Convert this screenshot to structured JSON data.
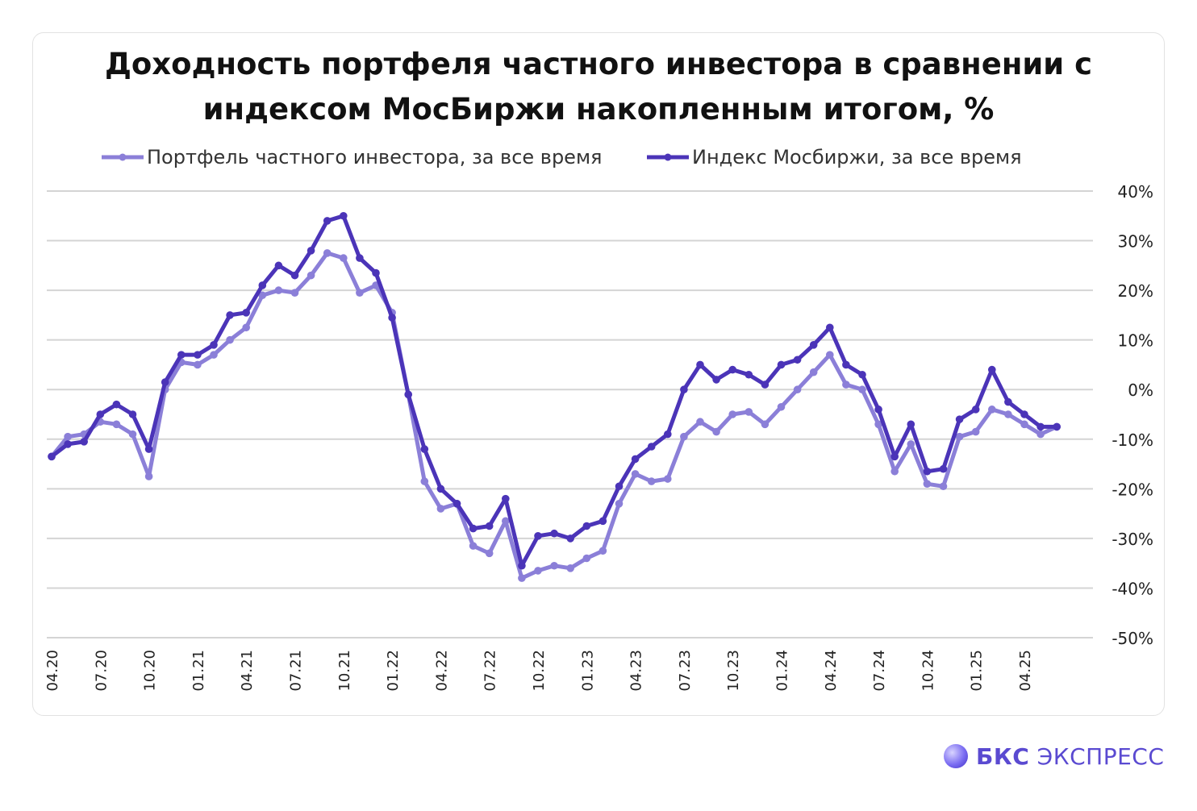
{
  "chart_data": {
    "type": "line",
    "title": "Доходность портфеля частного инвестора в сравнении с индексом МосБиржи накопленным итогом, %",
    "title_lines": [
      "Доходность портфеля частного инвестора в сравнении с",
      "индексом МосБиржи накопленным итогом, %"
    ],
    "legend_position": "top",
    "grid": true,
    "y_axis_side": "right",
    "ylim": [
      -50,
      40
    ],
    "y_ticks": [
      40,
      30,
      20,
      10,
      0,
      -10,
      -20,
      -30,
      -40,
      -50
    ],
    "y_tick_labels": [
      "40%",
      "30%",
      "20%",
      "10%",
      "0%",
      "-10%",
      "-20%",
      "-30%",
      "-40%",
      "-50%"
    ],
    "x_tick_labels": [
      "04.20",
      "07.20",
      "10.20",
      "01.21",
      "04.21",
      "07.21",
      "10.21",
      "01.22",
      "04.22",
      "07.22",
      "10.22",
      "01.23",
      "04.23",
      "07.23",
      "10.23",
      "01.24",
      "04.24",
      "07.24",
      "10.24",
      "01.25",
      "04.25"
    ],
    "x_tick_every": 3,
    "series": [
      {
        "name": "Портфель частного инвестора, за все время",
        "color": "#8b7fd8",
        "values": [
          -13.5,
          -9.5,
          -9,
          -6.5,
          -7,
          -9,
          -17.5,
          0,
          5.5,
          5,
          7,
          10,
          12.5,
          19,
          20,
          19.5,
          23,
          27.5,
          26.5,
          19.5,
          21,
          15.5,
          -1,
          -18.5,
          -24,
          -23,
          -31.5,
          -33,
          -26.5,
          -38,
          -36.5,
          -35.5,
          -36,
          -34,
          -32.5,
          -23,
          -17,
          -18.5,
          -18,
          -9.5,
          -6.5,
          -8.5,
          -5,
          -4.5,
          -7,
          -3.5,
          0,
          3.5,
          7,
          1,
          0,
          -7,
          -16.5,
          -11,
          -19,
          -19.5,
          -9.5,
          -8.5,
          -4,
          -5,
          -7,
          -9,
          -7.5
        ]
      },
      {
        "name": "Индекс Мосбиржи, за все время",
        "color": "#4b34b8",
        "values": [
          -13.5,
          -11,
          -10.5,
          -5,
          -3,
          -5,
          -12,
          1.5,
          7,
          7,
          9,
          15,
          15.5,
          21,
          25,
          23,
          28,
          34,
          35,
          26.5,
          23.5,
          14.5,
          -1,
          -12,
          -20,
          -23,
          -28,
          -27.5,
          -22,
          -35.5,
          -29.5,
          -29,
          -30,
          -27.5,
          -26.5,
          -19.5,
          -14,
          -11.5,
          -9,
          0,
          5,
          2,
          4,
          3,
          1,
          5,
          6,
          9,
          12.5,
          5,
          3,
          -4,
          -13.5,
          -7,
          -16.5,
          -16,
          -6,
          -4,
          4,
          -2.5,
          -5,
          -7.5,
          -7.5
        ]
      }
    ]
  },
  "brand": {
    "name_bold": "БКС",
    "name_rest": " ЭКСПРЕСС"
  }
}
